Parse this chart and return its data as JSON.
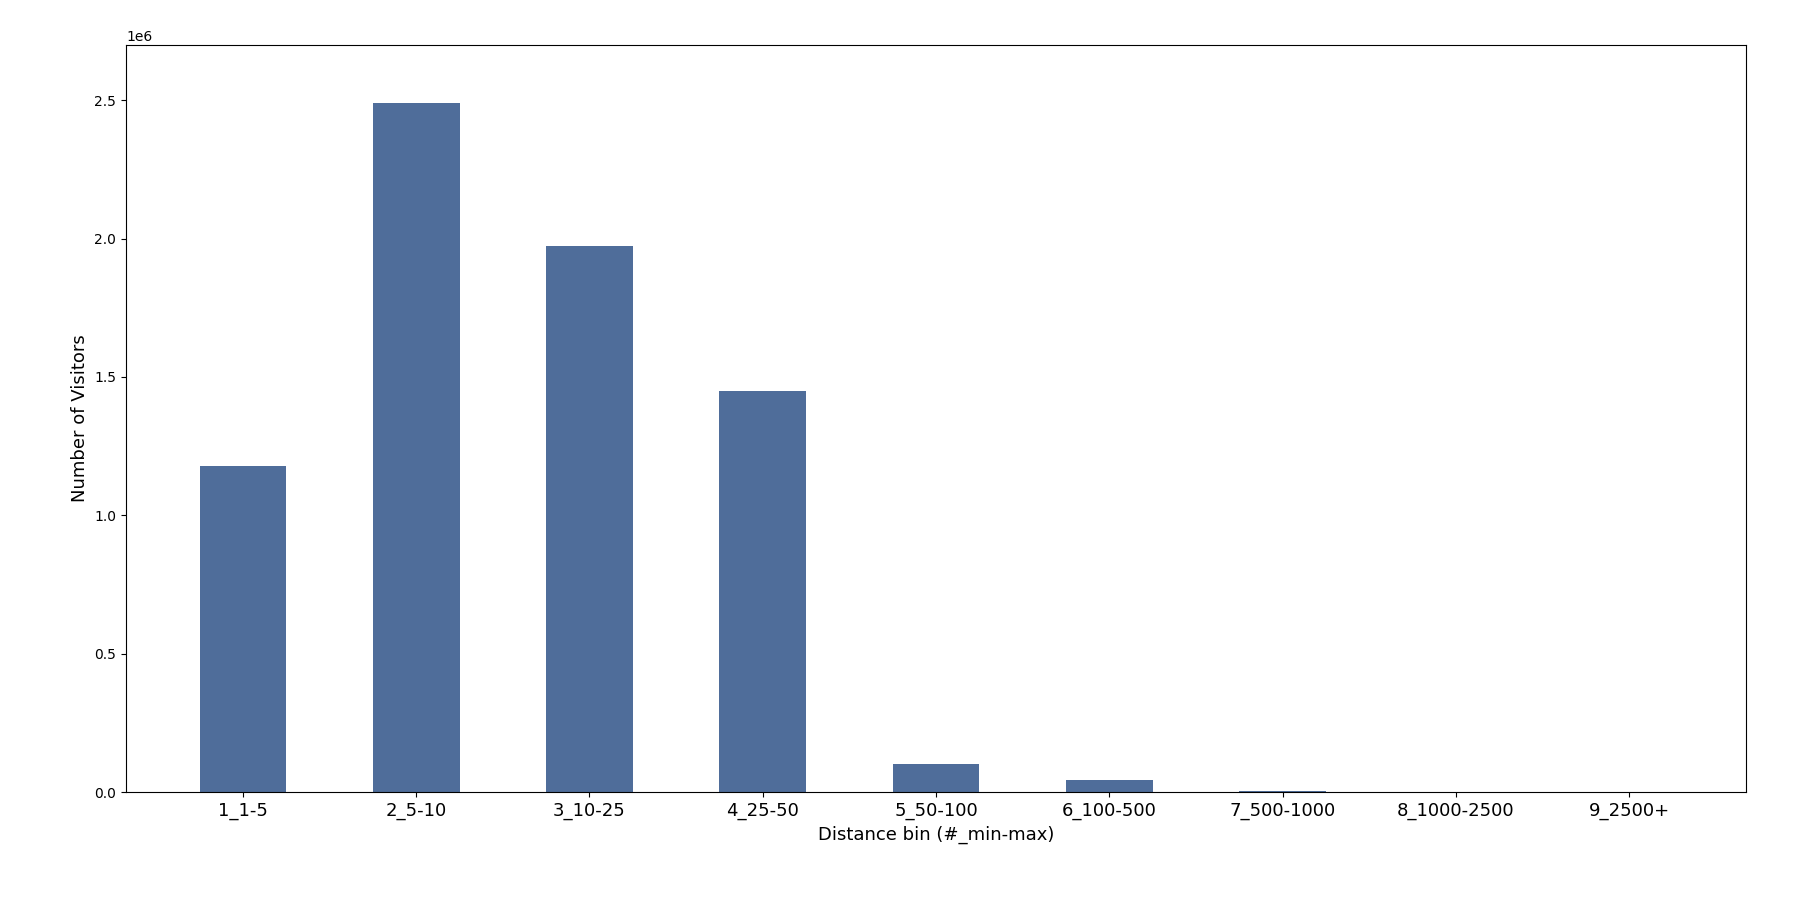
{
  "categories": [
    "1_1-5",
    "2_5-10",
    "3_10-25",
    "4_25-50",
    "5_50-100",
    "6_100-500",
    "7_500-1000",
    "8_1000-2500",
    "9_2500+"
  ],
  "values": [
    1180000,
    2490000,
    1975000,
    1450000,
    100000,
    45000,
    3000,
    1000,
    500
  ],
  "bar_color": "#4f6d9a",
  "xlabel": "Distance bin (#_min-max)",
  "ylabel": "Number of Visitors",
  "ylim": [
    0,
    2700000
  ],
  "figsize": [
    18,
    9
  ],
  "dpi": 100,
  "bar_width": 0.5,
  "tick_fontsize": 13,
  "label_fontsize": 13
}
